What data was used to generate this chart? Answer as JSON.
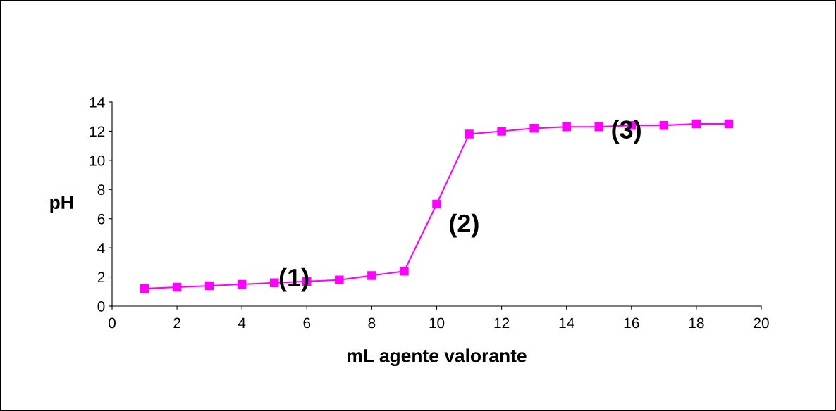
{
  "chart_data": {
    "type": "line",
    "xlabel": "mL agente valorante",
    "ylabel": "pH",
    "x": [
      1,
      2,
      3,
      4,
      5,
      6,
      7,
      8,
      9,
      10,
      11,
      12,
      13,
      14,
      15,
      16,
      17,
      18,
      19
    ],
    "series": [
      {
        "color": "#ff00ff",
        "values": [
          1.2,
          1.3,
          1.4,
          1.5,
          1.6,
          1.7,
          1.8,
          2.1,
          2.4,
          7.0,
          11.8,
          12.0,
          12.2,
          12.3,
          12.3,
          12.4,
          12.4,
          12.5,
          12.5
        ]
      }
    ],
    "xlim": [
      0,
      20
    ],
    "xticks": [
      0,
      2,
      4,
      6,
      8,
      10,
      12,
      14,
      16,
      18,
      20
    ],
    "ylim": [
      0,
      14
    ],
    "yticks": [
      0,
      2,
      4,
      6,
      8,
      10,
      12,
      14
    ],
    "marker": "square",
    "line_style": "solid",
    "grid": false,
    "legend": false,
    "annotations": [
      {
        "text": "(1)",
        "x": 5,
        "y": 1.6
      },
      {
        "text": "(2)",
        "x": 10,
        "y": 7.0
      },
      {
        "text": "(3)",
        "x": 15,
        "y": 12.3
      }
    ]
  }
}
